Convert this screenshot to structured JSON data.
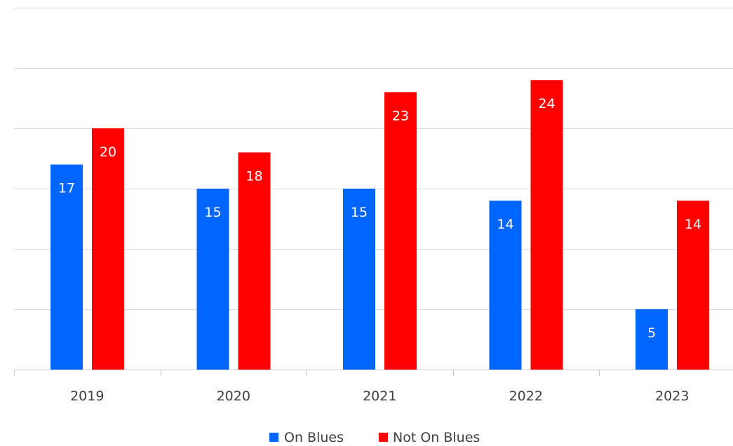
{
  "chart_data": {
    "type": "bar",
    "categories": [
      "2019",
      "2020",
      "2021",
      "2022",
      "2023"
    ],
    "series": [
      {
        "name": "On Blues",
        "values": [
          17,
          15,
          15,
          14,
          5
        ],
        "color": "#0066ff"
      },
      {
        "name": "Not On Blues",
        "values": [
          20,
          18,
          23,
          24,
          14
        ],
        "color": "#ff0000"
      }
    ],
    "title": "",
    "xlabel": "",
    "ylabel": "",
    "ylim": [
      0,
      30
    ],
    "y_gridlines": true,
    "y_tick_labels_visible": false,
    "data_labels": "inside-end",
    "legend_position": "bottom"
  }
}
